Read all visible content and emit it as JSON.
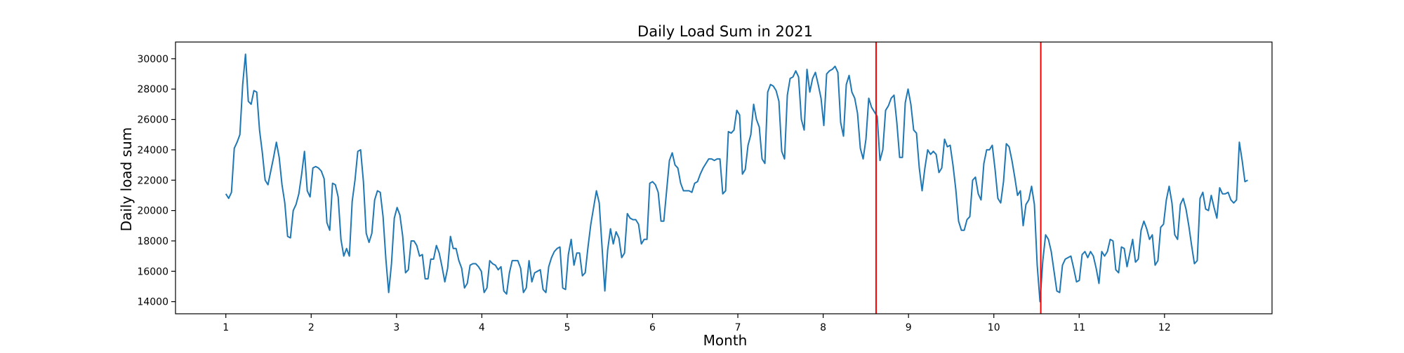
{
  "chart_data": {
    "type": "line",
    "title": "Daily Load Sum in 2021",
    "xlabel": "Month",
    "ylabel": "Daily load sum",
    "xlim": [
      0.41,
      13.26
    ],
    "ylim": [
      13200,
      31100
    ],
    "xticks": [
      1,
      2,
      3,
      4,
      5,
      6,
      7,
      8,
      9,
      10,
      11,
      12
    ],
    "yticks": [
      14000,
      16000,
      18000,
      20000,
      22000,
      24000,
      26000,
      28000,
      30000
    ],
    "grid": false,
    "legend": null,
    "series": [
      {
        "color": "#1f77b4",
        "x_start": 1,
        "x_step": 0.0329,
        "values": [
          21100,
          20800,
          21200,
          24100,
          24500,
          25000,
          28300,
          30300,
          27200,
          27000,
          27900,
          27800,
          25300,
          23800,
          22000,
          21700,
          22600,
          23500,
          24500,
          23500,
          21700,
          20500,
          18300,
          18200,
          20000,
          20400,
          21100,
          22400,
          23900,
          21300,
          20900,
          22800,
          22900,
          22800,
          22600,
          22100,
          19200,
          18700,
          21800,
          21700,
          20900,
          18100,
          17000,
          17500,
          17000,
          20600,
          22000,
          23900,
          24000,
          21900,
          18500,
          17900,
          18500,
          20700,
          21300,
          21200,
          19600,
          16800,
          14600,
          16500,
          19500,
          20200,
          19700,
          18300,
          15900,
          16100,
          18000,
          18000,
          17700,
          17000,
          17100,
          15500,
          15500,
          16800,
          16800,
          17700,
          17200,
          16300,
          15300,
          16200,
          18300,
          17500,
          17500,
          16700,
          16200,
          14900,
          15200,
          16400,
          16500,
          16500,
          16300,
          16000,
          14600,
          14900,
          16700,
          16500,
          16400,
          16100,
          16300,
          14700,
          14500,
          15900,
          16700,
          16700,
          16700,
          16200,
          14600,
          14900,
          16700,
          15300,
          15900,
          16000,
          16100,
          14800,
          14600,
          16300,
          16900,
          17300,
          17500,
          17600,
          14900,
          14800,
          17100,
          18100,
          16400,
          17200,
          17200,
          15700,
          15900,
          17600,
          19100,
          20200,
          21300,
          20500,
          17600,
          14700,
          17400,
          18800,
          17800,
          18600,
          18200,
          16900,
          17200,
          19800,
          19500,
          19400,
          19400,
          19100,
          17800,
          18100,
          18100,
          21800,
          21900,
          21700,
          21200,
          19300,
          19300,
          21300,
          23300,
          23800,
          23000,
          22800,
          21800,
          21300,
          21300,
          21300,
          21200,
          21800,
          21900,
          22400,
          22800,
          23100,
          23400,
          23400,
          23300,
          23400,
          23400,
          21100,
          21300,
          25200,
          25100,
          25300,
          26600,
          26300,
          22400,
          22700,
          24300,
          25000,
          27000,
          26000,
          25500,
          23400,
          23100,
          27800,
          28300,
          28200,
          27900,
          27200,
          23900,
          23400,
          27600,
          28700,
          28800,
          29200,
          28800,
          26000,
          25300,
          29300,
          27800,
          28700,
          29100,
          28300,
          27400,
          25600,
          29000,
          29200,
          29300,
          29500,
          29100,
          25800,
          24900,
          28300,
          28900,
          27800,
          27400,
          26400,
          24100,
          23400,
          24700,
          27400,
          26800,
          26500,
          26200,
          23300,
          24000,
          26600,
          26900,
          27400,
          27600,
          25800,
          23500,
          23500,
          27100,
          28000,
          27000,
          25300,
          25100,
          22800,
          21300,
          22800,
          24000,
          23700,
          23900,
          23700,
          22500,
          22800,
          24700,
          24200,
          24300,
          23000,
          21400,
          19300,
          18700,
          18700,
          19400,
          19600,
          22000,
          22200,
          21100,
          20700,
          23100,
          24000,
          24000,
          24300,
          22700,
          20800,
          20500,
          21900,
          24400,
          24200,
          23300,
          22200,
          21000,
          21300,
          19000,
          20400,
          20700,
          21600,
          20400,
          16400,
          14000,
          16700,
          18400,
          18100,
          17300,
          16000,
          14700,
          14600,
          16400,
          16800,
          16900,
          17000,
          16200,
          15300,
          15400,
          17100,
          17300,
          16900,
          17300,
          17000,
          16200,
          15200,
          17300,
          17000,
          17300,
          18100,
          18000,
          16100,
          15900,
          17600,
          17500,
          16300,
          17200,
          18100,
          16600,
          16800,
          18700,
          19300,
          18800,
          18100,
          18400,
          16400,
          16700,
          18900,
          19100,
          20700,
          21600,
          20500,
          18400,
          18100,
          20400,
          20800,
          20100,
          19000,
          17700,
          16500,
          16700,
          20800,
          21200,
          20100,
          20000,
          21000,
          20200,
          19500,
          21500,
          21100,
          21100,
          21200,
          20700,
          20500,
          20700,
          24500,
          23300,
          21900,
          22000
        ]
      }
    ],
    "vlines": [
      {
        "x": 8.62,
        "color": "#ff0000"
      },
      {
        "x": 10.55,
        "color": "#ff0000"
      }
    ]
  }
}
